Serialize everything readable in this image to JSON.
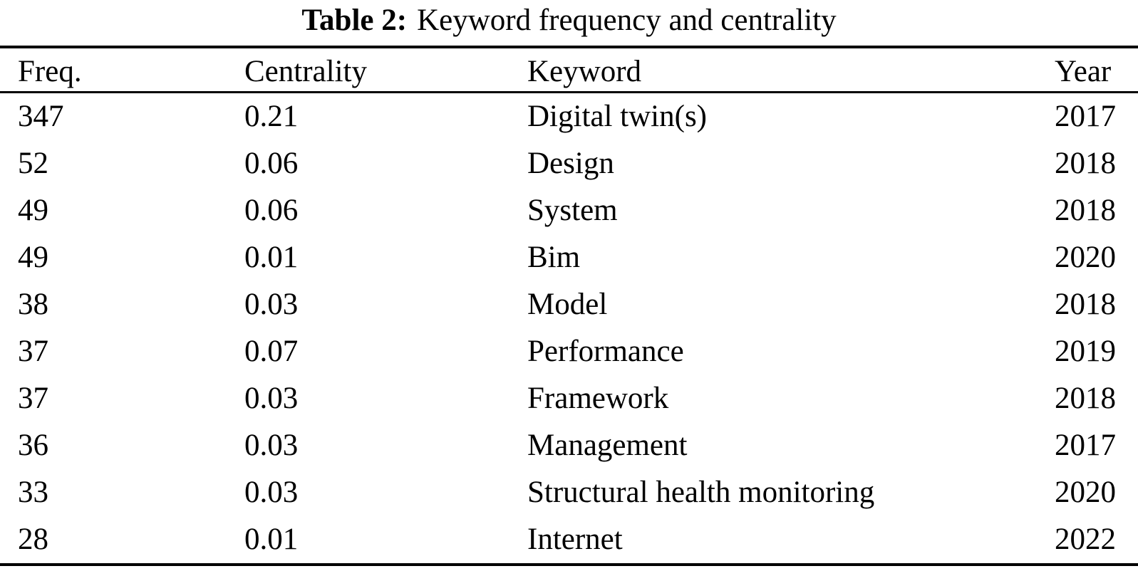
{
  "page": {
    "background": "#ffffff",
    "text_color": "#000000"
  },
  "table": {
    "label": "Table 2:",
    "caption": "Keyword frequency and centrality",
    "headers": {
      "freq": "Freq.",
      "centrality": "Centrality",
      "keyword": "Keyword",
      "year": "Year"
    },
    "rows": [
      {
        "freq": "347",
        "centrality": "0.21",
        "keyword": "Digital twin(s)",
        "year": "2017"
      },
      {
        "freq": "52",
        "centrality": "0.06",
        "keyword": "Design",
        "year": "2018"
      },
      {
        "freq": "49",
        "centrality": "0.06",
        "keyword": "System",
        "year": "2018"
      },
      {
        "freq": "49",
        "centrality": "0.01",
        "keyword": "Bim",
        "year": "2020"
      },
      {
        "freq": "38",
        "centrality": "0.03",
        "keyword": "Model",
        "year": "2018"
      },
      {
        "freq": "37",
        "centrality": "0.07",
        "keyword": "Performance",
        "year": "2019"
      },
      {
        "freq": "37",
        "centrality": "0.03",
        "keyword": "Framework",
        "year": "2018"
      },
      {
        "freq": "36",
        "centrality": "0.03",
        "keyword": "Management",
        "year": "2017"
      },
      {
        "freq": "33",
        "centrality": "0.03",
        "keyword": "Structural health monitoring",
        "year": "2020"
      },
      {
        "freq": "28",
        "centrality": "0.01",
        "keyword": "Internet",
        "year": "2022"
      }
    ]
  }
}
